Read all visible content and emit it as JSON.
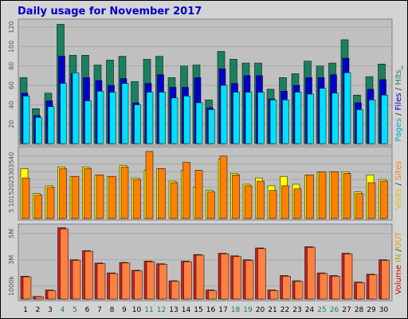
{
  "title": "Daily usage for November 2017",
  "panel_labels": {
    "top": [
      {
        "text": "Pages",
        "color": "#00aacc"
      },
      {
        "text": " / ",
        "color": "#333333"
      },
      {
        "text": "Files",
        "color": "#0000cc"
      },
      {
        "text": " / ",
        "color": "#333333"
      },
      {
        "text": "Hits",
        "color": "#1a8060"
      },
      {
        "text": "_",
        "color": "#333333"
      }
    ],
    "middle": [
      {
        "text": "Visits",
        "color": "#e0c000"
      },
      {
        "text": " / ",
        "color": "#333333"
      },
      {
        "text": "Sites",
        "color": "#ff8000"
      }
    ],
    "bottom": [
      {
        "text": "Volume",
        "color": "#cc0000"
      },
      {
        "text": " IN ",
        "color": "#aaaa00"
      },
      {
        "text": "/",
        "color": "#333333"
      },
      {
        "text": "OUT",
        "color": "#e0a000"
      }
    ]
  },
  "colors": {
    "hits": "#1a8060",
    "files": "#0000cc",
    "pages": "#00e0ff",
    "visits": "#ffff00",
    "sites": "#ff8000",
    "volume_in": "#cc2020",
    "volume_out": "#ff8040",
    "weekend_label": "#1a8060",
    "weekday_label": "#000000"
  },
  "chart_data": [
    {
      "type": "bar",
      "name": "pages-files-hits",
      "categories": [
        "1",
        "2",
        "3",
        "4",
        "5",
        "6",
        "7",
        "8",
        "9",
        "10",
        "11",
        "12",
        "13",
        "14",
        "15",
        "16",
        "17",
        "18",
        "19",
        "20",
        "21",
        "22",
        "23",
        "24",
        "25",
        "26",
        "27",
        "28",
        "29",
        "30"
      ],
      "weekend_days": [
        "4",
        "5",
        "11",
        "12",
        "18",
        "19",
        "25",
        "26"
      ],
      "y_ticks": [
        "20",
        "40",
        "60",
        "80",
        "100",
        "120"
      ],
      "ylim": [
        0,
        125
      ],
      "series": [
        {
          "name": "Hits",
          "values": [
            68,
            36,
            52,
            123,
            91,
            91,
            81,
            86,
            90,
            64,
            87,
            90,
            68,
            80,
            81,
            45,
            95,
            87,
            83,
            83,
            56,
            68,
            72,
            85,
            80,
            83,
            107,
            50,
            69,
            82
          ]
        },
        {
          "name": "Files",
          "values": [
            52,
            29,
            44,
            90,
            72,
            68,
            65,
            60,
            67,
            42,
            62,
            71,
            58,
            58,
            68,
            37,
            77,
            62,
            70,
            70,
            46,
            54,
            60,
            68,
            68,
            71,
            88,
            42,
            56,
            66
          ]
        },
        {
          "name": "Pages",
          "values": [
            49,
            27,
            38,
            62,
            73,
            44,
            54,
            53,
            62,
            40,
            53,
            53,
            47,
            49,
            42,
            35,
            60,
            53,
            53,
            53,
            45,
            45,
            53,
            51,
            57,
            52,
            73,
            35,
            45,
            50
          ]
        }
      ]
    },
    {
      "type": "bar",
      "name": "visits-sites",
      "categories": [
        "1",
        "2",
        "3",
        "4",
        "5",
        "6",
        "7",
        "8",
        "9",
        "10",
        "11",
        "12",
        "13",
        "14",
        "15",
        "16",
        "17",
        "18",
        "19",
        "20",
        "21",
        "22",
        "23",
        "24",
        "25",
        "26",
        "27",
        "28",
        "29",
        "30"
      ],
      "y_ticks": [
        "5",
        "10",
        "15",
        "20",
        "25",
        "30",
        "35",
        "40"
      ],
      "ylim": [
        0,
        45
      ],
      "series": [
        {
          "name": "Visits",
          "values": [
            32,
            16,
            21,
            33,
            27,
            33,
            28,
            27,
            34,
            26,
            31,
            32,
            24,
            31,
            20,
            18,
            38,
            29,
            22,
            26,
            21,
            27,
            22,
            28,
            30,
            30,
            30,
            17,
            28,
            25
          ]
        },
        {
          "name": "Sites",
          "values": [
            26,
            15,
            20,
            32,
            27,
            32,
            28,
            27,
            33,
            25,
            43,
            32,
            23,
            36,
            31,
            17,
            40,
            28,
            21,
            24,
            18,
            21,
            19,
            28,
            30,
            30,
            29,
            16,
            23,
            24
          ]
        }
      ]
    },
    {
      "type": "bar",
      "name": "volume",
      "categories": [
        "1",
        "2",
        "3",
        "4",
        "5",
        "6",
        "7",
        "8",
        "9",
        "10",
        "11",
        "12",
        "13",
        "14",
        "15",
        "16",
        "17",
        "18",
        "19",
        "20",
        "21",
        "22",
        "23",
        "24",
        "25",
        "26",
        "27",
        "28",
        "29",
        "30"
      ],
      "y_tick_labels": [
        "1000k",
        "3M",
        "5M"
      ],
      "y_tick_values": [
        1000,
        3000,
        5000
      ],
      "ylim": [
        0,
        5600
      ],
      "series": [
        {
          "name": "Volume IN",
          "values": [
            1750,
            200,
            700,
            5450,
            3000,
            3700,
            2750,
            2000,
            2800,
            2200,
            2900,
            2700,
            1400,
            2900,
            3400,
            700,
            3500,
            3300,
            3000,
            3900,
            700,
            1800,
            1400,
            4000,
            2000,
            1800,
            3500,
            1300,
            1900,
            3000
          ]
        },
        {
          "name": "Volume OUT",
          "values": [
            1700,
            180,
            650,
            5350,
            2950,
            3650,
            2700,
            1950,
            2750,
            2150,
            2850,
            2650,
            1350,
            2850,
            3350,
            650,
            3450,
            3250,
            2950,
            3850,
            650,
            1750,
            1350,
            3950,
            1950,
            1750,
            3450,
            1250,
            1850,
            2950
          ]
        }
      ]
    }
  ]
}
